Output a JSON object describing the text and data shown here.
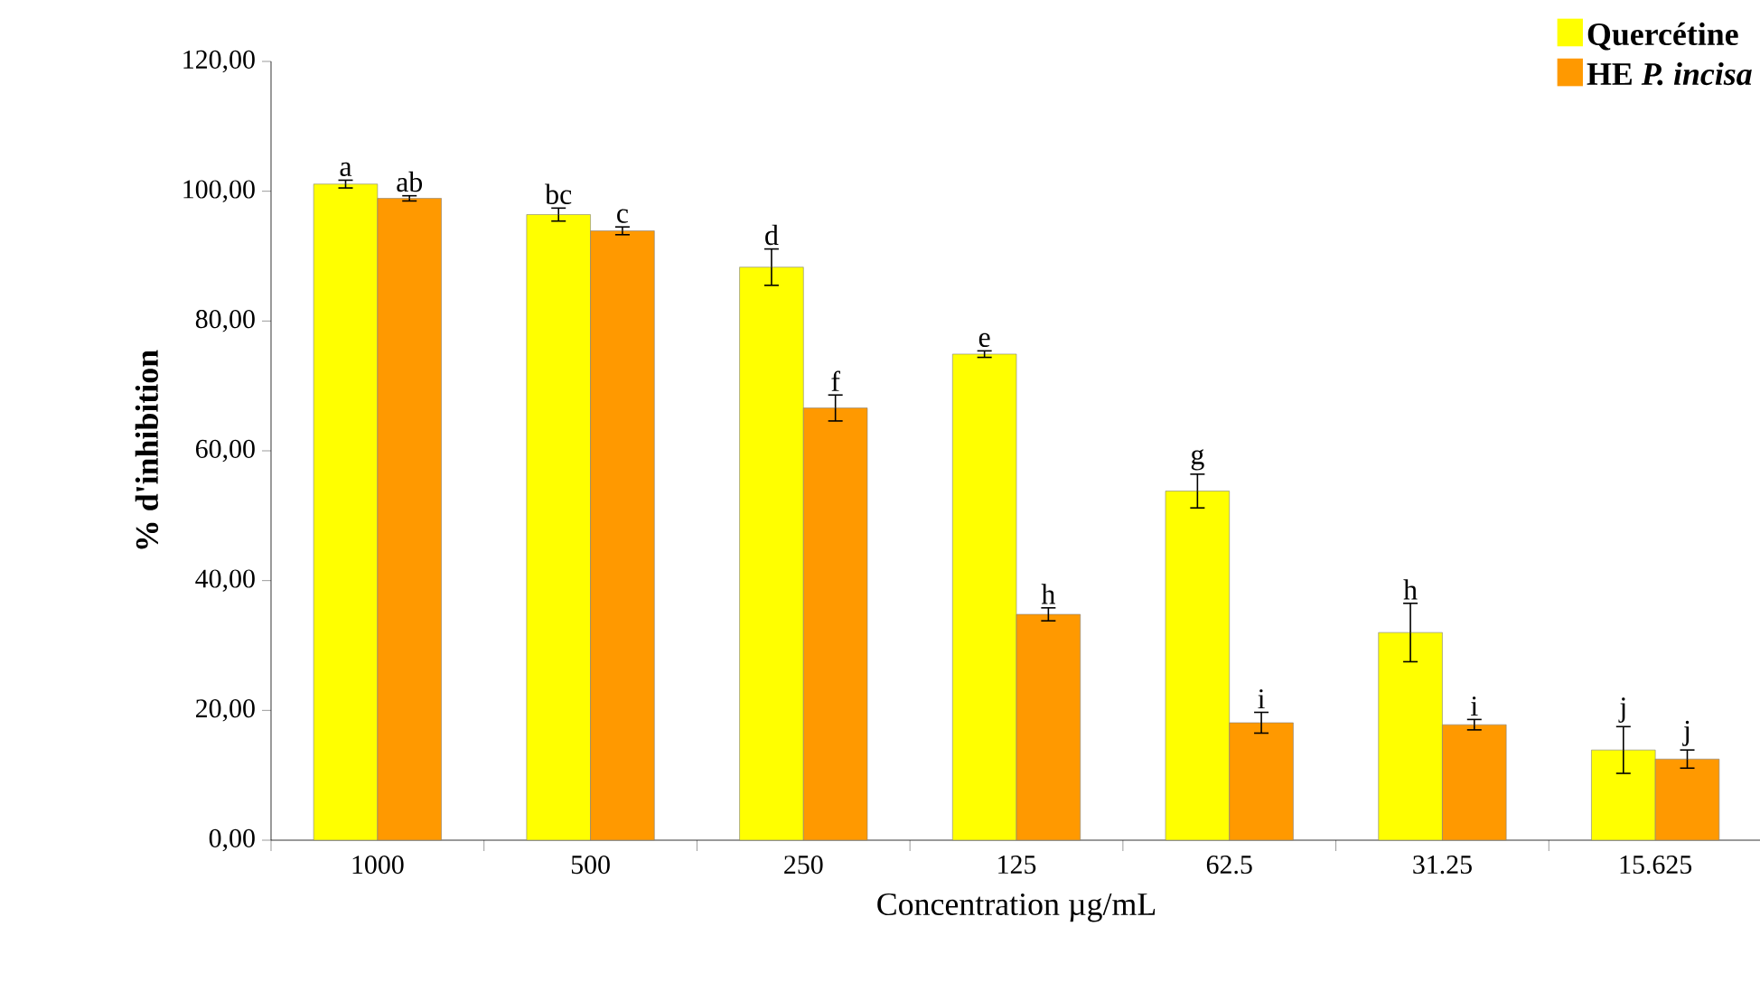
{
  "chart_data": {
    "type": "bar",
    "categories": [
      "1000",
      "500",
      "250",
      "125",
      "62.5",
      "31.25",
      "15.625"
    ],
    "series": [
      {
        "name": "Quercétine",
        "color": "#ffff00",
        "values": [
          101.1,
          96.4,
          88.3,
          74.9,
          53.8,
          32.0,
          13.9
        ],
        "errors": [
          0.6,
          1.0,
          2.8,
          0.5,
          2.6,
          4.5,
          3.6
        ],
        "value_labels": [
          "a",
          "bc",
          "d",
          "e",
          "g",
          "h",
          "j"
        ]
      },
      {
        "name": "HE *P. incisa*",
        "color": "#ff9900",
        "values": [
          98.9,
          93.9,
          66.6,
          34.8,
          18.1,
          17.8,
          12.5
        ],
        "errors": [
          0.4,
          0.6,
          2.0,
          1.0,
          1.6,
          0.8,
          1.4
        ],
        "value_labels": [
          "ab",
          "c",
          "f",
          "h",
          "i",
          "i",
          "j"
        ]
      }
    ],
    "xlabel": "Concentration µg/mL",
    "ylabel": "% d'inhibition",
    "ylim": [
      0,
      120
    ],
    "yticks": [
      {
        "value": 0,
        "label": "0,00"
      },
      {
        "value": 20,
        "label": "20,00"
      },
      {
        "value": 40,
        "label": "40,00"
      },
      {
        "value": 60,
        "label": "60,00"
      },
      {
        "value": 80,
        "label": "80,00"
      },
      {
        "value": 100,
        "label": "100,00"
      },
      {
        "value": 120,
        "label": "120,00"
      }
    ],
    "legend": "top right"
  }
}
